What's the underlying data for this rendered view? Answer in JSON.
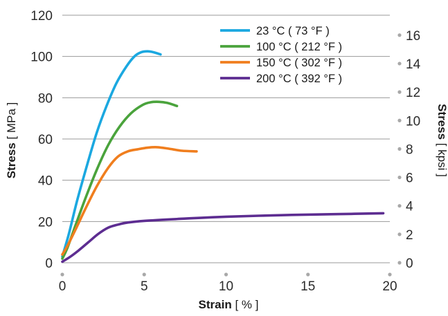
{
  "chart_data": {
    "type": "line",
    "xlabel": {
      "bold": "Strain",
      "unit": " [ % ]"
    },
    "ylabel_left": {
      "bold": "Stress",
      "unit": " [ MPa ]"
    },
    "ylabel_right": {
      "bold": "Stress",
      "unit": " [ kpsi ]"
    },
    "x_ticks": [
      "0",
      "5",
      "10",
      "15",
      "20"
    ],
    "x_tick_values": [
      0,
      5,
      10,
      15,
      20
    ],
    "y_left_ticks": [
      "0",
      "20",
      "40",
      "60",
      "80",
      "100",
      "120"
    ],
    "y_left_tick_values": [
      0,
      20,
      40,
      60,
      80,
      100,
      120
    ],
    "y_right_ticks": [
      "0",
      "2",
      "4",
      "6",
      "8",
      "10",
      "12",
      "14",
      "16"
    ],
    "y_right_tick_values": [
      0,
      2,
      4,
      6,
      8,
      10,
      12,
      14,
      16
    ],
    "xlim": [
      0,
      20
    ],
    "ylim_left": [
      0,
      120
    ],
    "ylim_right_kpsi": [
      0,
      17.4
    ],
    "grid": "horizontal",
    "legend_position": "top-right",
    "series": [
      {
        "name": "23 °C ( 73 °F )",
        "color": "#1ba8e0",
        "points": [
          [
            0,
            3
          ],
          [
            0.4,
            14
          ],
          [
            0.9,
            30
          ],
          [
            1.5,
            47
          ],
          [
            2.1,
            63
          ],
          [
            2.7,
            76
          ],
          [
            3.3,
            87
          ],
          [
            3.9,
            95
          ],
          [
            4.4,
            100
          ],
          [
            4.8,
            102
          ],
          [
            5.2,
            102.5
          ],
          [
            5.6,
            102
          ],
          [
            6.0,
            101
          ]
        ]
      },
      {
        "name": "100 °C ( 212 °F )",
        "color": "#4aa33c",
        "points": [
          [
            0,
            2
          ],
          [
            0.3,
            7
          ],
          [
            0.8,
            18
          ],
          [
            1.4,
            31
          ],
          [
            2.1,
            45
          ],
          [
            2.8,
            57
          ],
          [
            3.5,
            66
          ],
          [
            4.2,
            72.5
          ],
          [
            4.9,
            76.5
          ],
          [
            5.4,
            77.8
          ],
          [
            5.9,
            78
          ],
          [
            6.4,
            77.5
          ],
          [
            7.0,
            76
          ]
        ]
      },
      {
        "name": "150 °C ( 302 °F )",
        "color": "#f07e1e",
        "points": [
          [
            0,
            4
          ],
          [
            0.3,
            8
          ],
          [
            0.8,
            16
          ],
          [
            1.4,
            26
          ],
          [
            2.1,
            37
          ],
          [
            2.8,
            46
          ],
          [
            3.4,
            51.5
          ],
          [
            4.0,
            54
          ],
          [
            4.6,
            55
          ],
          [
            5.2,
            55.8
          ],
          [
            5.8,
            56
          ],
          [
            6.5,
            55.3
          ],
          [
            7.3,
            54.3
          ],
          [
            8.2,
            54
          ]
        ]
      },
      {
        "name": "200 °C ( 392 °F )",
        "color": "#5d2d91",
        "points": [
          [
            0,
            0.5
          ],
          [
            0.5,
            3
          ],
          [
            1.0,
            6
          ],
          [
            1.6,
            10
          ],
          [
            2.2,
            14
          ],
          [
            2.8,
            17
          ],
          [
            3.4,
            18.5
          ],
          [
            4.0,
            19.5
          ],
          [
            5.0,
            20.3
          ],
          [
            7.0,
            21.2
          ],
          [
            10.0,
            22.3
          ],
          [
            14.0,
            23.2
          ],
          [
            17.0,
            23.6
          ],
          [
            19.6,
            24
          ]
        ]
      }
    ]
  }
}
